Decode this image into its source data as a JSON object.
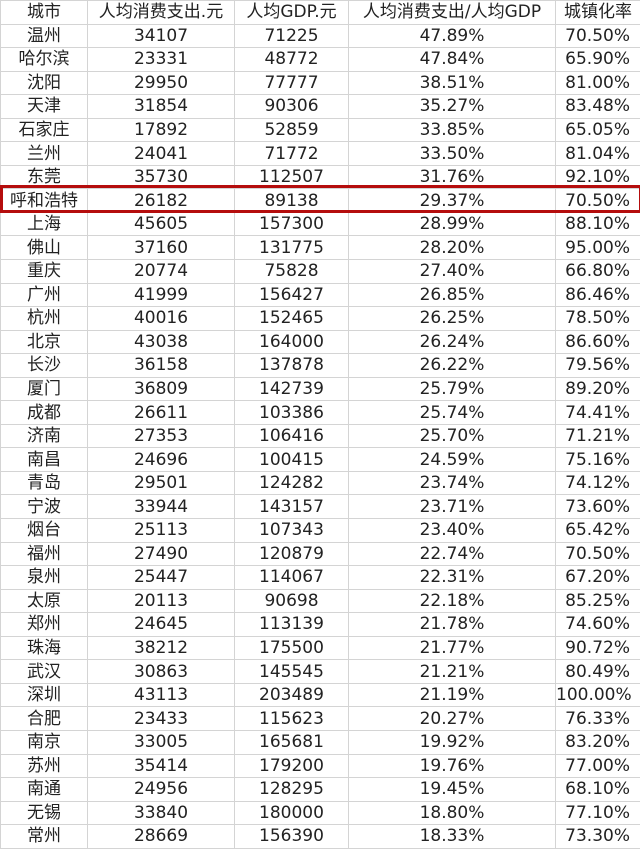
{
  "table": {
    "headers": [
      "城市",
      "人均消费支出.元",
      "人均GDP.元",
      "人均消费支出/人均GDP",
      "城镇化率"
    ],
    "rows": [
      [
        "温州",
        "34107",
        "71225",
        "47.89%",
        "70.50%"
      ],
      [
        "哈尔滨",
        "23331",
        "48772",
        "47.84%",
        "65.90%"
      ],
      [
        "沈阳",
        "29950",
        "77777",
        "38.51%",
        "81.00%"
      ],
      [
        "天津",
        "31854",
        "90306",
        "35.27%",
        "83.48%"
      ],
      [
        "石家庄",
        "17892",
        "52859",
        "33.85%",
        "65.05%"
      ],
      [
        "兰州",
        "24041",
        "71772",
        "33.50%",
        "81.04%"
      ],
      [
        "东莞",
        "35730",
        "112507",
        "31.76%",
        "92.10%"
      ],
      [
        "呼和浩特",
        "26182",
        "89138",
        "29.37%",
        "70.50%"
      ],
      [
        "上海",
        "45605",
        "157300",
        "28.99%",
        "88.10%"
      ],
      [
        "佛山",
        "37160",
        "131775",
        "28.20%",
        "95.00%"
      ],
      [
        "重庆",
        "20774",
        "75828",
        "27.40%",
        "66.80%"
      ],
      [
        "广州",
        "41999",
        "156427",
        "26.85%",
        "86.46%"
      ],
      [
        "杭州",
        "40016",
        "152465",
        "26.25%",
        "78.50%"
      ],
      [
        "北京",
        "43038",
        "164000",
        "26.24%",
        "86.60%"
      ],
      [
        "长沙",
        "36158",
        "137878",
        "26.22%",
        "79.56%"
      ],
      [
        "厦门",
        "36809",
        "142739",
        "25.79%",
        "89.20%"
      ],
      [
        "成都",
        "26611",
        "103386",
        "25.74%",
        "74.41%"
      ],
      [
        "济南",
        "27353",
        "106416",
        "25.70%",
        "71.21%"
      ],
      [
        "南昌",
        "24696",
        "100415",
        "24.59%",
        "75.16%"
      ],
      [
        "青岛",
        "29501",
        "124282",
        "23.74%",
        "74.12%"
      ],
      [
        "宁波",
        "33944",
        "143157",
        "23.71%",
        "73.60%"
      ],
      [
        "烟台",
        "25113",
        "107343",
        "23.40%",
        "65.42%"
      ],
      [
        "福州",
        "27490",
        "120879",
        "22.74%",
        "70.50%"
      ],
      [
        "泉州",
        "25447",
        "114067",
        "22.31%",
        "67.20%"
      ],
      [
        "太原",
        "20113",
        "90698",
        "22.18%",
        "85.25%"
      ],
      [
        "郑州",
        "24645",
        "113139",
        "21.78%",
        "74.60%"
      ],
      [
        "珠海",
        "38212",
        "175500",
        "21.77%",
        "90.72%"
      ],
      [
        "武汉",
        "30863",
        "145545",
        "21.21%",
        "80.49%"
      ],
      [
        "深圳",
        "43113",
        "203489",
        "21.19%",
        "100.00%"
      ],
      [
        "合肥",
        "23433",
        "115623",
        "20.27%",
        "76.33%"
      ],
      [
        "南京",
        "33005",
        "165681",
        "19.92%",
        "83.20%"
      ],
      [
        "苏州",
        "35414",
        "179200",
        "19.76%",
        "77.00%"
      ],
      [
        "南通",
        "24956",
        "128295",
        "19.45%",
        "68.10%"
      ],
      [
        "无锡",
        "33840",
        "180000",
        "18.80%",
        "77.10%"
      ],
      [
        "常州",
        "28669",
        "156390",
        "18.33%",
        "73.30%"
      ]
    ],
    "highlighted_city": "呼和浩特",
    "highlight_color": "#b50d0d"
  }
}
